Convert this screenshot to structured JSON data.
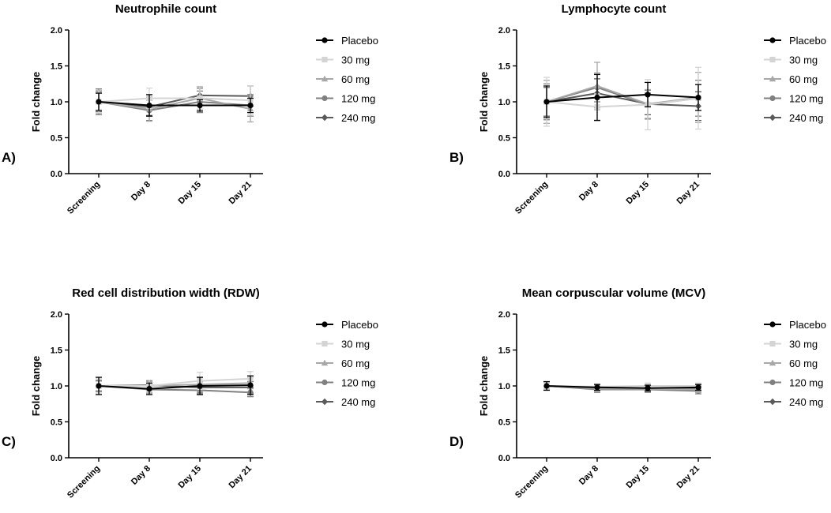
{
  "colors": {
    "Placebo": "#000000",
    "30 mg": "#d4d4d4",
    "60 mg": "#a8a8a8",
    "120 mg": "#808080",
    "240 mg": "#5a5a5a"
  },
  "chart_data": [
    {
      "type": "line",
      "panel": "A)",
      "title": "Neutrophile count",
      "ylabel": "Fold change",
      "xlabel": "",
      "ylim": [
        0,
        2.0
      ],
      "yticks": [
        "0.0",
        "0.5",
        "1.0",
        "1.5",
        "2.0"
      ],
      "categories": [
        "Screening",
        "Day 8",
        "Day 15",
        "Day 21"
      ],
      "series": [
        {
          "name": "Placebo",
          "marker": "circle",
          "values": [
            1.0,
            0.95,
            0.95,
            0.95
          ],
          "errors": [
            0.12,
            0.15,
            0.08,
            0.1
          ]
        },
        {
          "name": "30 mg",
          "marker": "square",
          "values": [
            1.0,
            1.05,
            1.05,
            1.02
          ],
          "errors": [
            0.15,
            0.14,
            0.15,
            0.2
          ]
        },
        {
          "name": "60 mg",
          "marker": "triangle",
          "values": [
            1.0,
            0.9,
            1.05,
            0.9
          ],
          "errors": [
            0.16,
            0.17,
            0.16,
            0.18
          ]
        },
        {
          "name": "120 mg",
          "marker": "circle",
          "values": [
            1.0,
            0.88,
            1.0,
            0.95
          ],
          "errors": [
            0.18,
            0.14,
            0.15,
            0.15
          ]
        },
        {
          "name": "240 mg",
          "marker": "diamond",
          "values": [
            1.0,
            0.93,
            1.09,
            1.08
          ],
          "errors": [
            0.14,
            0.12,
            0.1,
            0.14
          ]
        }
      ]
    },
    {
      "type": "line",
      "panel": "B)",
      "title": "Lymphocyte count",
      "ylabel": "Fold change",
      "xlabel": "",
      "ylim": [
        0,
        2.0
      ],
      "yticks": [
        "0.0",
        "0.5",
        "1.0",
        "1.5",
        "2.0"
      ],
      "categories": [
        "Screening",
        "Day 8",
        "Day 15",
        "Day 21"
      ],
      "series": [
        {
          "name": "Placebo",
          "marker": "circle",
          "values": [
            1.0,
            1.06,
            1.1,
            1.06
          ],
          "errors": [
            0.22,
            0.32,
            0.17,
            0.18
          ]
        },
        {
          "name": "30 mg",
          "marker": "square",
          "values": [
            1.0,
            0.93,
            0.96,
            1.05
          ],
          "errors": [
            0.34,
            0.18,
            0.35,
            0.43
          ]
        },
        {
          "name": "60 mg",
          "marker": "triangle",
          "values": [
            1.0,
            1.22,
            0.97,
            1.06
          ],
          "errors": [
            0.3,
            0.33,
            0.2,
            0.35
          ]
        },
        {
          "name": "120 mg",
          "marker": "circle",
          "values": [
            1.0,
            1.2,
            0.96,
            1.05
          ],
          "errors": [
            0.25,
            0.2,
            0.2,
            0.25
          ]
        },
        {
          "name": "240 mg",
          "marker": "diamond",
          "values": [
            1.0,
            1.12,
            0.97,
            0.94
          ],
          "errors": [
            0.2,
            0.2,
            0.15,
            0.2
          ]
        }
      ]
    },
    {
      "type": "line",
      "panel": "C)",
      "title": "Red cell distribution width (RDW)",
      "ylabel": "Fold change",
      "xlabel": "",
      "ylim": [
        0,
        2.0
      ],
      "yticks": [
        "0.0",
        "0.5",
        "1.0",
        "1.5",
        "2.0"
      ],
      "categories": [
        "Screening",
        "Day 8",
        "Day 15",
        "Day 21"
      ],
      "series": [
        {
          "name": "Placebo",
          "marker": "circle",
          "values": [
            1.0,
            0.96,
            1.0,
            1.01
          ],
          "errors": [
            0.12,
            0.08,
            0.12,
            0.13
          ]
        },
        {
          "name": "30 mg",
          "marker": "square",
          "values": [
            1.0,
            1.0,
            1.07,
            1.1
          ],
          "errors": [
            0.1,
            0.08,
            0.12,
            0.1
          ]
        },
        {
          "name": "60 mg",
          "marker": "triangle",
          "values": [
            1.0,
            1.0,
            1.02,
            1.04
          ],
          "errors": [
            0.08,
            0.06,
            0.1,
            0.08
          ]
        },
        {
          "name": "120 mg",
          "marker": "circle",
          "values": [
            1.0,
            0.95,
            0.94,
            0.91
          ],
          "errors": [
            0.08,
            0.05,
            0.06,
            0.06
          ]
        },
        {
          "name": "240 mg",
          "marker": "diamond",
          "values": [
            1.0,
            1.01,
            0.98,
            0.98
          ],
          "errors": [
            0.07,
            0.06,
            0.08,
            0.08
          ]
        }
      ]
    },
    {
      "type": "line",
      "panel": "D)",
      "title": "Mean corpuscular volume (MCV)",
      "ylabel": "Fold change",
      "xlabel": "",
      "ylim": [
        0,
        2.0
      ],
      "yticks": [
        "0.0",
        "0.5",
        "1.0",
        "1.5",
        "2.0"
      ],
      "categories": [
        "Screening",
        "Day 8",
        "Day 15",
        "Day 21"
      ],
      "series": [
        {
          "name": "Placebo",
          "marker": "circle",
          "values": [
            1.0,
            0.98,
            0.97,
            0.98
          ],
          "errors": [
            0.06,
            0.04,
            0.04,
            0.04
          ]
        },
        {
          "name": "30 mg",
          "marker": "square",
          "values": [
            1.0,
            0.99,
            1.0,
            1.0
          ],
          "errors": [
            0.04,
            0.04,
            0.04,
            0.04
          ]
        },
        {
          "name": "60 mg",
          "marker": "triangle",
          "values": [
            1.0,
            0.96,
            0.96,
            0.95
          ],
          "errors": [
            0.04,
            0.04,
            0.04,
            0.04
          ]
        },
        {
          "name": "120 mg",
          "marker": "circle",
          "values": [
            1.0,
            0.95,
            0.95,
            0.93
          ],
          "errors": [
            0.04,
            0.04,
            0.04,
            0.04
          ]
        },
        {
          "name": "240 mg",
          "marker": "diamond",
          "values": [
            1.0,
            0.96,
            0.96,
            0.96
          ],
          "errors": [
            0.04,
            0.04,
            0.04,
            0.04
          ]
        }
      ]
    }
  ]
}
